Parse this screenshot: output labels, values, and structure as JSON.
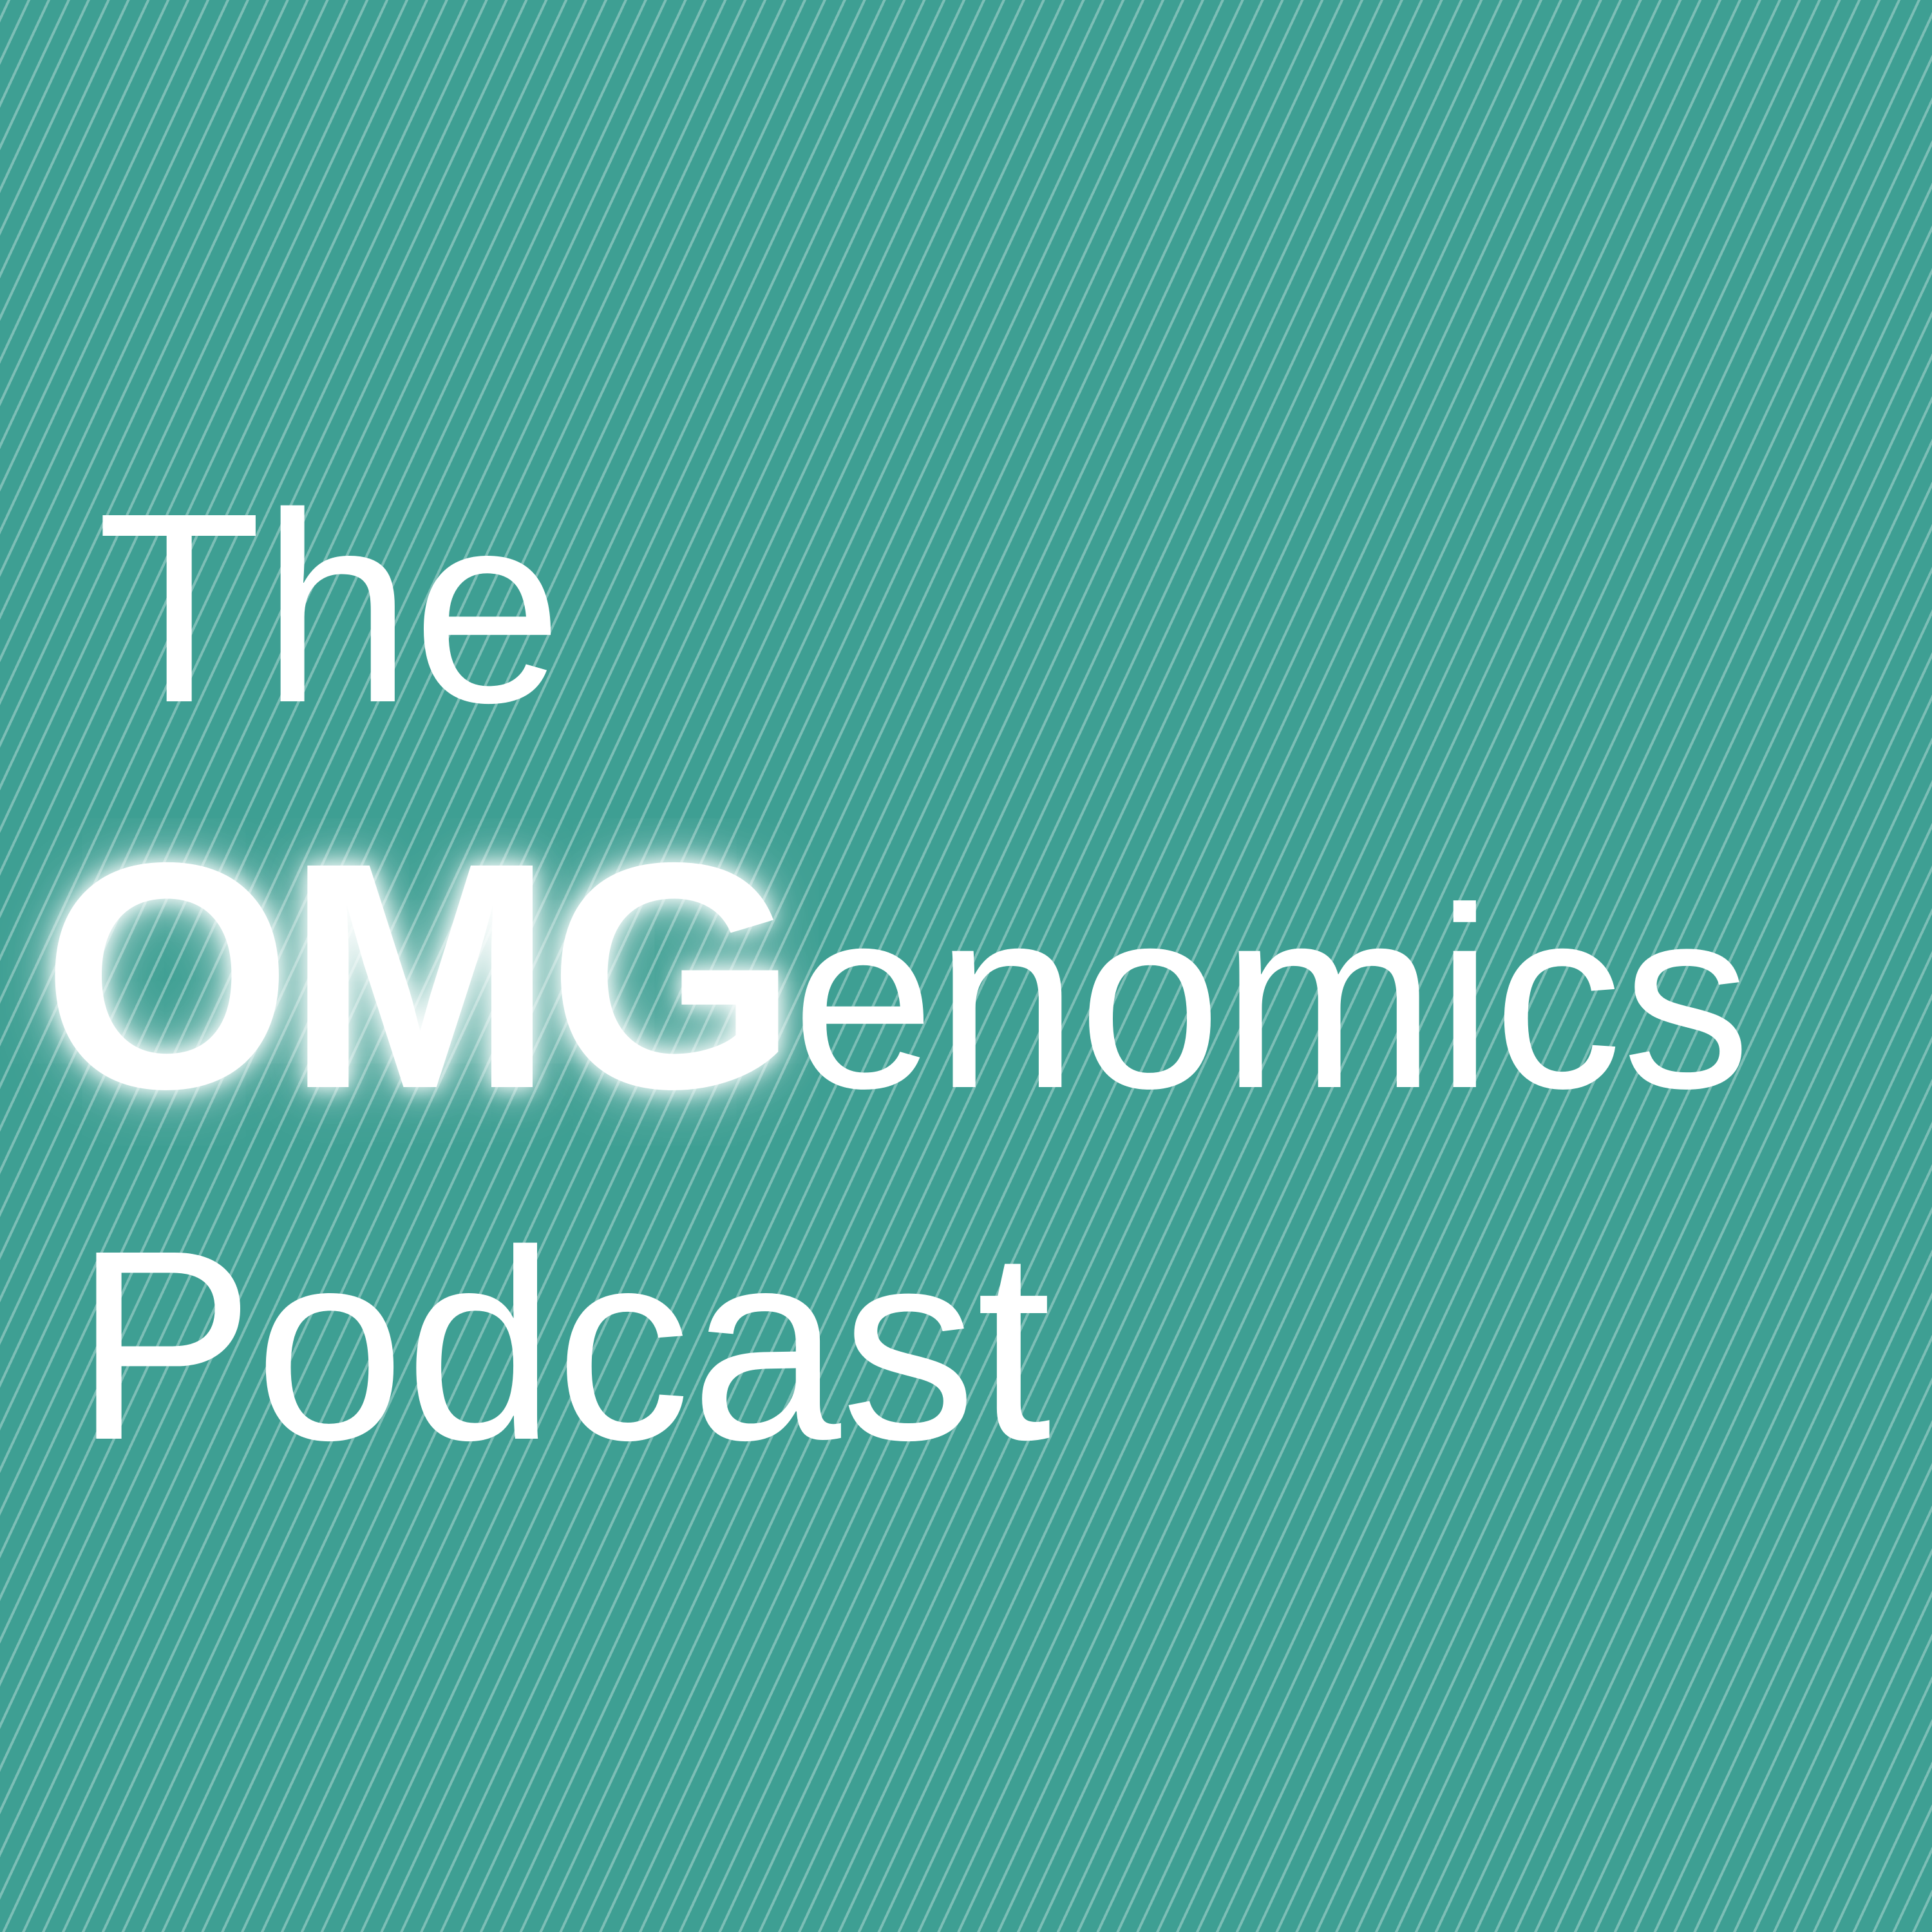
{
  "cover": {
    "background_color": "#3e9f93",
    "stripe_color": "#ffffff",
    "text_color": "#ffffff",
    "line1": "The",
    "line2_bold": "OMG",
    "line2_rest": "enomics",
    "line3": "Podcast"
  }
}
